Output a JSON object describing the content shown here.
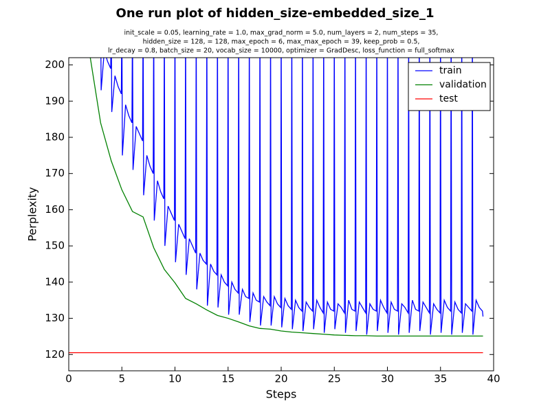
{
  "chart_data": {
    "type": "line",
    "title": "One run plot of hidden_size-embedded_size_1",
    "subtitle": [
      "init_scale = 0.05, learning_rate = 1.0, max_grad_norm = 5.0, num_layers = 2, num_steps = 35,",
      "hidden_size = 128,    = 128, max_epoch = 6, max_max_epoch = 39, keep_prob = 0.5,",
      "lr_decay = 0.8, batch_size = 20, vocab_size = 10000, optimizer = GradDesc, loss_function = full_softmax"
    ],
    "x_label": "Steps",
    "y_label": "Perplexity",
    "xlim": [
      0,
      40
    ],
    "ylim": [
      115.5,
      202
    ],
    "xticks": [
      0,
      5,
      10,
      15,
      20,
      25,
      30,
      35,
      40
    ],
    "yticks": [
      120,
      130,
      140,
      150,
      160,
      170,
      180,
      190,
      200
    ],
    "legend": "upper right",
    "series": [
      {
        "name": "train",
        "color": "#0000ff",
        "x": [
          3,
          3.05,
          3.35,
          3.65,
          3.95,
          4,
          4.05,
          4.35,
          4.65,
          4.95,
          5,
          5.05,
          5.35,
          5.65,
          5.95,
          6,
          6.05,
          6.35,
          6.65,
          6.95,
          7,
          7.05,
          7.35,
          7.65,
          7.95,
          8,
          8.05,
          8.35,
          8.65,
          8.95,
          9,
          9.05,
          9.35,
          9.65,
          9.95,
          10,
          10.05,
          10.35,
          10.65,
          10.95,
          11,
          11.05,
          11.35,
          11.65,
          11.95,
          12,
          12.05,
          12.35,
          12.65,
          12.95,
          13,
          13.05,
          13.35,
          13.65,
          13.95,
          14,
          14.05,
          14.35,
          14.65,
          14.95,
          15,
          15.05,
          15.35,
          15.65,
          15.95,
          16,
          16.05,
          16.35,
          16.65,
          16.95,
          17,
          17.05,
          17.35,
          17.65,
          17.95,
          18,
          18.05,
          18.35,
          18.65,
          18.95,
          19,
          19.05,
          19.35,
          19.65,
          19.95,
          20,
          20.05,
          20.35,
          20.65,
          20.95,
          21,
          21.05,
          21.35,
          21.65,
          21.95,
          22,
          22.05,
          22.35,
          22.65,
          22.95,
          23,
          23.05,
          23.35,
          23.65,
          23.95,
          24,
          24.05,
          24.35,
          24.65,
          24.95,
          25,
          25.05,
          25.35,
          25.65,
          25.95,
          26,
          26.05,
          26.35,
          26.65,
          26.95,
          27,
          27.05,
          27.35,
          27.65,
          27.95,
          28,
          28.05,
          28.35,
          28.65,
          28.95,
          29,
          29.05,
          29.35,
          29.65,
          29.95,
          30,
          30.05,
          30.35,
          30.65,
          30.95,
          31,
          31.05,
          31.35,
          31.65,
          31.95,
          32,
          32.05,
          32.35,
          32.65,
          32.95,
          33,
          33.05,
          33.35,
          33.65,
          33.95,
          34,
          34.05,
          34.35,
          34.65,
          34.95,
          35,
          35.05,
          35.35,
          35.65,
          35.95,
          36,
          36.05,
          36.35,
          36.65,
          36.95,
          37,
          37.05,
          37.35,
          37.65,
          37.95,
          38,
          38.05,
          38.35,
          38.65,
          38.95,
          39
        ],
        "values": [
          215,
          193,
          204,
          201,
          199,
          215,
          187,
          197,
          194,
          192,
          215,
          175,
          189,
          186,
          184,
          215,
          171,
          183,
          181,
          179,
          215,
          164,
          175,
          172,
          170,
          215,
          157,
          168,
          165,
          163,
          215,
          150,
          161,
          159,
          157,
          215,
          145.5,
          156,
          154,
          152,
          215,
          142,
          152,
          150,
          148,
          215,
          138,
          148,
          146,
          145,
          215,
          133.5,
          145,
          143,
          142,
          215,
          133,
          142,
          140,
          139,
          215,
          131,
          140,
          138,
          137,
          215,
          131,
          138,
          136,
          135.5,
          215,
          129,
          137,
          135,
          134.5,
          215,
          128,
          136,
          134.5,
          133.5,
          215,
          128,
          136,
          134,
          133,
          215,
          127.5,
          135.5,
          133.5,
          132.5,
          215,
          127,
          135,
          133,
          132,
          215,
          126.5,
          134.5,
          133,
          132,
          215,
          127,
          135,
          133,
          131.5,
          215,
          126,
          134.5,
          132.5,
          132,
          215,
          127,
          134,
          133,
          131.5,
          215,
          126,
          135,
          132.5,
          132,
          215,
          126.5,
          134.5,
          133,
          131.5,
          215,
          125.5,
          134,
          132.5,
          132,
          215,
          126.5,
          135,
          133,
          131.5,
          215,
          126,
          134.5,
          132.5,
          132,
          215,
          125.5,
          134,
          133,
          131.5,
          215,
          126,
          135,
          132.5,
          132,
          215,
          126.5,
          134.5,
          133,
          131.5,
          215,
          125.5,
          134,
          132.5,
          131.5,
          215,
          126,
          135,
          133,
          132,
          215,
          125.5,
          134.5,
          132.5,
          131.5,
          215,
          126,
          134,
          133,
          132,
          215,
          125.5,
          135,
          133,
          132,
          130.5
        ]
      },
      {
        "name": "validation",
        "color": "#008000",
        "x": [
          1,
          2,
          3,
          4,
          5,
          6,
          7,
          8,
          9,
          10,
          11,
          12,
          13,
          14,
          15,
          16,
          17,
          18,
          19,
          20,
          21,
          22,
          23,
          24,
          25,
          26,
          27,
          28,
          29,
          30,
          31,
          32,
          33,
          34,
          35,
          36,
          37,
          38,
          39
        ],
        "values": [
          230,
          202.5,
          184,
          173.5,
          165.5,
          159.5,
          158,
          149.5,
          143.5,
          139.8,
          135.5,
          134,
          132.3,
          130.8,
          130,
          129,
          127.9,
          127.2,
          127,
          126.5,
          126.2,
          126,
          125.8,
          125.6,
          125.4,
          125.3,
          125.2,
          125.2,
          125.1,
          125.1,
          125.1,
          125.1,
          125.1,
          125.1,
          125.1,
          125.1,
          125.1,
          125.1,
          125.1
        ]
      },
      {
        "name": "test",
        "color": "#ff0000",
        "x": [
          0,
          39
        ],
        "values": [
          120.5,
          120.5
        ]
      }
    ]
  }
}
